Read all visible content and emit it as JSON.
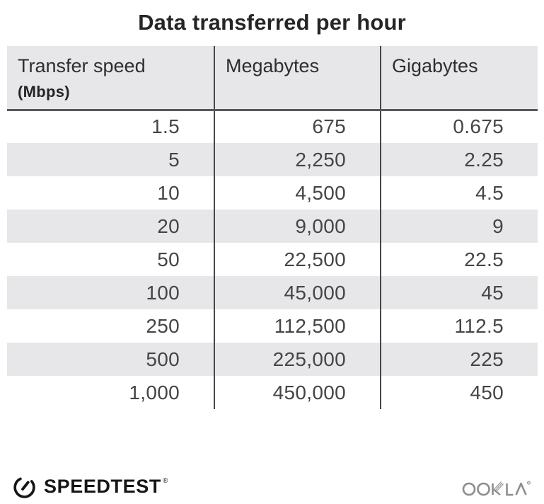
{
  "title": "Data transferred per hour",
  "table": {
    "columns": [
      {
        "label": "Transfer speed",
        "sublabel": "(Mbps)"
      },
      {
        "label": "Megabytes",
        "sublabel": ""
      },
      {
        "label": "Gigabytes",
        "sublabel": ""
      }
    ],
    "rows": [
      [
        "1.5",
        "675",
        "0.675"
      ],
      [
        "5",
        "2,250",
        "2.25"
      ],
      [
        "10",
        "4,500",
        "4.5"
      ],
      [
        "20",
        "9,000",
        "9"
      ],
      [
        "50",
        "22,500",
        "22.5"
      ],
      [
        "100",
        "45,000",
        "45"
      ],
      [
        "250",
        "112,500",
        "112.5"
      ],
      [
        "500",
        "225,000",
        "225"
      ],
      [
        "1,000",
        "450,000",
        "450"
      ]
    ]
  },
  "chart_data": {
    "type": "table",
    "title": "Data transferred per hour",
    "columns": [
      "Transfer speed (Mbps)",
      "Megabytes",
      "Gigabytes"
    ],
    "rows": [
      [
        1.5,
        675,
        0.675
      ],
      [
        5,
        2250,
        2.25
      ],
      [
        10,
        4500,
        4.5
      ],
      [
        20,
        9000,
        9
      ],
      [
        50,
        22500,
        22.5
      ],
      [
        100,
        45000,
        45
      ],
      [
        250,
        112500,
        112.5
      ],
      [
        500,
        225000,
        225
      ],
      [
        1000,
        450000,
        450
      ]
    ],
    "layout_hints": {
      "striped_rows": true,
      "header_background": "#e7e7ea",
      "column_dividers": true
    }
  },
  "footer": {
    "speedtest_label": "SPEEDTEST",
    "speedtest_reg": "®",
    "ookla_label": "OOKLA",
    "ookla_reg": "®"
  },
  "colors": {
    "header_bg": "#e7e7ea",
    "stripe_bg": "#e7e7ea",
    "header_rule": "#57575a",
    "column_divider": "#474749",
    "title_text": "#252527",
    "value_text": "#454547",
    "speedtest_black": "#161616",
    "ookla_gray": "#8d8d8d"
  }
}
